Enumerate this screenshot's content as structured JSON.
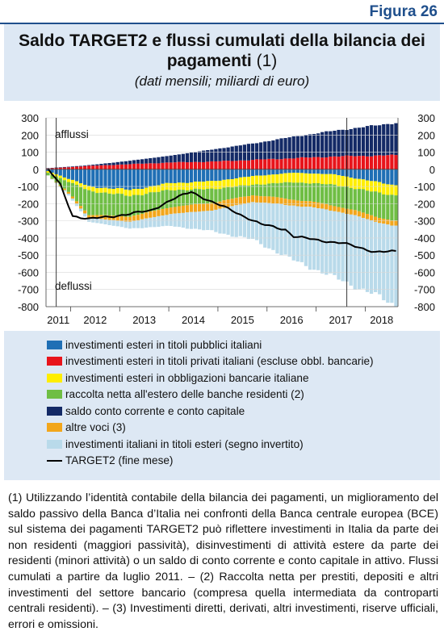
{
  "figure_label": "Figura 26",
  "title_main": "Saldo TARGET2 e flussi cumulati della bilancia dei pagamenti",
  "title_note": "(1)",
  "subtitle": "(dati mensili; miliardi di euro)",
  "chart_data": {
    "type": "bar",
    "stacked": true,
    "x_unit": "month",
    "x_start": "2011-07",
    "x_end": "2018-08",
    "x_tick_labels": [
      "2011",
      "2012",
      "2013",
      "2014",
      "2015",
      "2016",
      "2017",
      "2018"
    ],
    "ylim": [
      -800,
      300
    ],
    "y_ticks": [
      300,
      200,
      100,
      0,
      -100,
      -200,
      -300,
      -400,
      -500,
      -600,
      -700,
      -800
    ],
    "y_tick_labels": [
      "300",
      "200",
      "100",
      "0",
      "-100",
      "-200",
      "-300",
      "-400",
      "-500",
      "-600",
      "-700",
      "-800"
    ],
    "right_axis_mirror": true,
    "annotations": [
      "afflussi",
      "deflussi"
    ],
    "vertical_markers": [
      "2011-09",
      "2017-08"
    ],
    "series": [
      {
        "name": "investimenti esteri in titoli pubblici italiani",
        "color": "#1f6fb5",
        "anchors": [
          [
            0,
            -10
          ],
          [
            10,
            -100
          ],
          [
            20,
            -120
          ],
          [
            30,
            -80
          ],
          [
            40,
            -70
          ],
          [
            50,
            -40
          ],
          [
            60,
            -20
          ],
          [
            70,
            -30
          ],
          [
            84,
            -90
          ],
          [
            85,
            -90
          ]
        ]
      },
      {
        "name": "investimenti esteri in titoli privati italiani (escluse obbl. bancarie)",
        "color": "#e8141b",
        "anchors": [
          [
            0,
            5
          ],
          [
            10,
            20
          ],
          [
            20,
            30
          ],
          [
            30,
            40
          ],
          [
            40,
            45
          ],
          [
            50,
            55
          ],
          [
            60,
            65
          ],
          [
            70,
            75
          ],
          [
            80,
            80
          ],
          [
            85,
            82
          ]
        ]
      },
      {
        "name": "investimenti esteri in obbligazioni bancarie italiane",
        "color": "#ffee00",
        "anchors": [
          [
            0,
            -10
          ],
          [
            10,
            -25
          ],
          [
            20,
            -35
          ],
          [
            30,
            -40
          ],
          [
            40,
            -45
          ],
          [
            50,
            -50
          ],
          [
            60,
            -55
          ],
          [
            70,
            -60
          ],
          [
            85,
            -60
          ]
        ]
      },
      {
        "name": "raccolta netta all'estero delle banche residenti (2)",
        "color": "#6fbe44",
        "anchors": [
          [
            0,
            -15
          ],
          [
            5,
            -60
          ],
          [
            10,
            -140
          ],
          [
            20,
            -120
          ],
          [
            30,
            -100
          ],
          [
            40,
            -80
          ],
          [
            50,
            -60
          ],
          [
            60,
            -100
          ],
          [
            70,
            -120
          ],
          [
            85,
            -150
          ]
        ]
      },
      {
        "name": "saldo conto corrente e conto capitale",
        "color": "#142a66",
        "anchors": [
          [
            0,
            2
          ],
          [
            10,
            4
          ],
          [
            20,
            20
          ],
          [
            30,
            40
          ],
          [
            40,
            70
          ],
          [
            50,
            95
          ],
          [
            60,
            125
          ],
          [
            70,
            150
          ],
          [
            80,
            175
          ],
          [
            85,
            190
          ]
        ]
      },
      {
        "name": "altre voci (3)",
        "color": "#f2a61b",
        "anchors": [
          [
            0,
            0
          ],
          [
            10,
            -20
          ],
          [
            20,
            -30
          ],
          [
            30,
            -40
          ],
          [
            40,
            -45
          ],
          [
            50,
            -40
          ],
          [
            60,
            -35
          ],
          [
            70,
            -30
          ],
          [
            85,
            -30
          ]
        ]
      },
      {
        "name": "investimenti italiani in titoli esteri (segno invertito)",
        "color": "#b9daea",
        "anchors": [
          [
            0,
            0
          ],
          [
            10,
            -20
          ],
          [
            20,
            -40
          ],
          [
            30,
            -70
          ],
          [
            40,
            -120
          ],
          [
            50,
            -220
          ],
          [
            60,
            -320
          ],
          [
            70,
            -390
          ],
          [
            80,
            -430
          ],
          [
            85,
            -460
          ]
        ]
      },
      {
        "name": "TARGET2 (fine mese)",
        "color": "#000000",
        "style": "line",
        "anchors": [
          [
            0,
            0
          ],
          [
            3,
            -90
          ],
          [
            6,
            -270
          ],
          [
            10,
            -290
          ],
          [
            20,
            -260
          ],
          [
            25,
            -240
          ],
          [
            30,
            -180
          ],
          [
            35,
            -130
          ],
          [
            40,
            -190
          ],
          [
            45,
            -240
          ],
          [
            52,
            -320
          ],
          [
            58,
            -350
          ],
          [
            60,
            -390
          ],
          [
            65,
            -410
          ],
          [
            72,
            -430
          ],
          [
            75,
            -450
          ],
          [
            80,
            -480
          ],
          [
            85,
            -480
          ]
        ]
      }
    ]
  },
  "legend": [
    {
      "label": "investimenti esteri in titoli pubblici italiani",
      "color": "#1f6fb5",
      "kind": "box"
    },
    {
      "label": "investimenti esteri in titoli privati italiani (escluse obbl. bancarie)",
      "color": "#e8141b",
      "kind": "box"
    },
    {
      "label": "investimenti esteri in obbligazioni bancarie italiane",
      "color": "#ffee00",
      "kind": "box"
    },
    {
      "label": "raccolta netta all'estero delle banche residenti (2)",
      "color": "#6fbe44",
      "kind": "box"
    },
    {
      "label": "saldo conto corrente e conto capitale",
      "color": "#142a66",
      "kind": "box"
    },
    {
      "label": "altre voci (3)",
      "color": "#f2a61b",
      "kind": "box"
    },
    {
      "label": "investimenti italiani in titoli esteri (segno invertito)",
      "color": "#b9daea",
      "kind": "box"
    },
    {
      "label": "TARGET2 (fine mese)",
      "color": "#000000",
      "kind": "line"
    }
  ],
  "footnote": "(1) Utilizzando l’identità contabile della bilancia dei pagamenti, un miglioramento del saldo passivo della Banca d’Italia nei confronti della Banca centrale europea (BCE) sul sistema dei pagamenti TARGET2 può riflettere investimenti in Italia da parte dei non residenti (maggiori passività), disinvestimenti di attività estere da parte dei residenti (minori attività) o un saldo di conto corrente e conto capitale in attivo. Flussi cumulati a partire da luglio 2011. – (2) Raccolta netta per prestiti, depositi e altri investimenti del settore bancario (compresa quella intermediata da controparti centrali residenti). – (3) Investimenti diretti, derivati, altri investimenti, riserve ufficiali, errori e omissioni."
}
